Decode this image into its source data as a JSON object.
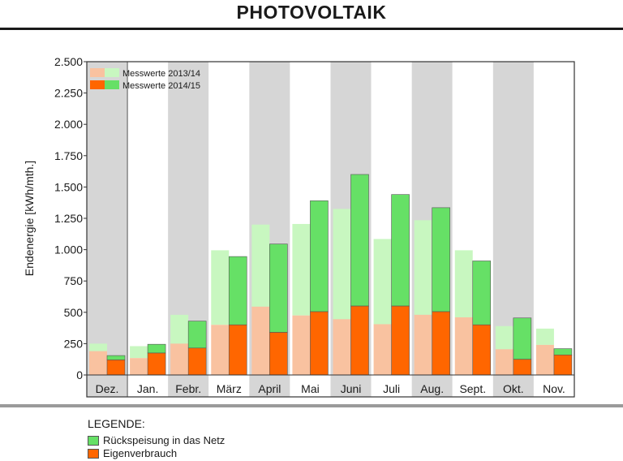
{
  "header": {
    "title": "PHOTOVOLTAIK"
  },
  "chart_data": {
    "type": "bar",
    "stacked": true,
    "grouped": true,
    "categories": [
      "Dez.",
      "Jan.",
      "Febr.",
      "März",
      "April",
      "Mai",
      "Juni",
      "Juli",
      "Aug.",
      "Sept.",
      "Okt.",
      "Nov."
    ],
    "ylabel": "Endenergie [kWh/mth.]",
    "ylim": [
      0,
      2500
    ],
    "yticks": [
      0,
      250,
      500,
      750,
      1000,
      1250,
      1500,
      1750,
      2000,
      2250,
      2500
    ],
    "ytick_labels": [
      "0",
      "250",
      "500",
      "750",
      "1.000",
      "1.250",
      "1.500",
      "1.750",
      "2.000",
      "2.250",
      "2.500"
    ],
    "grid": "alternating vertical bands",
    "legend_position": "top-left",
    "groups": [
      {
        "name": "Messwerte 2013/14",
        "eigenverbrauch": [
          190,
          135,
          250,
          400,
          545,
          475,
          445,
          405,
          480,
          460,
          205,
          240
        ],
        "rueckspeisung": [
          60,
          95,
          230,
          595,
          655,
          730,
          880,
          680,
          755,
          535,
          185,
          130
        ],
        "colors": {
          "eigenverbrauch": "#f9c2a0",
          "rueckspeisung": "#c8f7c0"
        }
      },
      {
        "name": "Messwerte 2014/15",
        "eigenverbrauch": [
          120,
          175,
          215,
          400,
          340,
          505,
          550,
          550,
          505,
          400,
          125,
          160
        ],
        "rueckspeisung": [
          35,
          70,
          215,
          545,
          705,
          885,
          1050,
          890,
          830,
          510,
          330,
          50
        ],
        "colors": {
          "eigenverbrauch": "#ff6600",
          "rueckspeisung": "#66e066"
        }
      }
    ]
  },
  "legend": {
    "title": "LEGENDE:",
    "items": [
      {
        "label": "Rückspeisung in das Netz",
        "color": "#66e066"
      },
      {
        "label": "Eigenverbrauch",
        "color": "#ff6600"
      }
    ]
  }
}
